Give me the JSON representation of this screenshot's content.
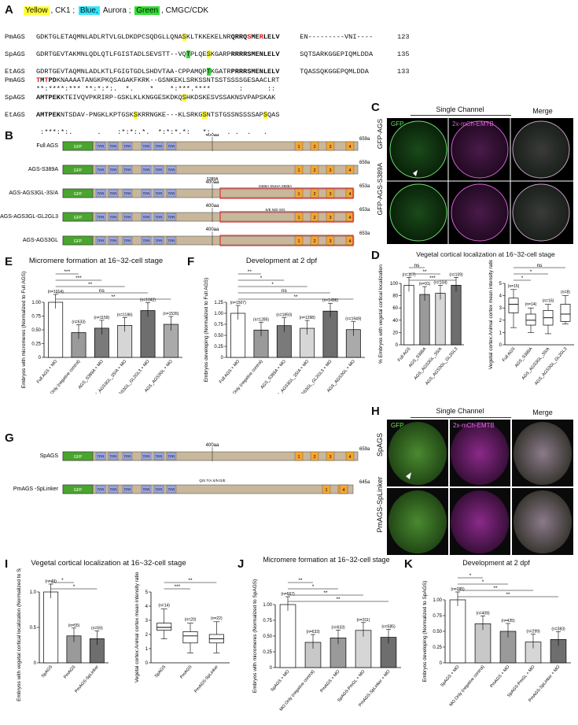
{
  "panels": {
    "A": "A",
    "B": "B",
    "C": "C",
    "D": "D",
    "E": "E",
    "F": "F",
    "G": "G",
    "H": "H",
    "I": "I",
    "J": "J",
    "K": "K"
  },
  "legendA": {
    "yellow": "Yellow",
    "ck1": ", CK1 ; ",
    "blue": "Blue,",
    "aurora": " Aurora ; ",
    "green": "Green",
    "cdk": ", CMGC/CDK"
  },
  "alignment": {
    "block1": [
      {
        "name": "PmAGS",
        "pre": "GDKTGLETAQMNLADLRTVLGLDKDPCSQDGLLQNA",
        "hlS": "S",
        "mid": "KLTKKEKELNR",
        "tail": "QRRQSMERLELV",
        "end": "     EN---------VNI----",
        "num": "123"
      },
      {
        "name": "SpAGS",
        "pre": "GDRTGEVTAKMNLQDLQTLFGISTADLSEVSTT--VQ",
        "hlT": "T",
        "m1": "PLQE",
        "hlS2": "S",
        "m2": "KGARP",
        "tail": "RRRRSMENLELV",
        "end": "     SQTSARKGGEPIQMLDDA",
        "num": "135"
      },
      {
        "name": "EtAGS",
        "pre": "GDRTGEVTAQMNLADLKTLFGIGTGDLSHDVTAA-CPPAMQP",
        "hlT": "T",
        "m2": "KGATR",
        "tail": "PRRRSMENLELV",
        "end": "     TQASSQKGGEPQMLDDA",
        "num": "133"
      },
      {
        "name": "cons",
        "text": "**:****:*** **:*:*:.  *.    *    *:***.****       :      ::"
      }
    ],
    "block2": [
      {
        "name": "PmAGS",
        "text": "TMTPDKNAAAATANGKPKQSAGAKFKRK--GSNKEKLSRKSSNTSSTSSSSGESAACLRT"
      },
      {
        "name": "SpAGS",
        "text": "AMTPEKKTEIVQVPKRIRP-GSKLKLKNGGESKDKQ",
        "hl": "S",
        "rest": "HKDSKESVSSAKNSVPAPSKAK"
      },
      {
        "name": "EtAGS",
        "text": "AMTPEKNTSDAV-PNGKLKPTGSK",
        "hl": "S",
        "rest": "KRRNGKE---KLSRKG",
        "hl2": "S",
        "rest2": "NTSTGSSNSSSSAP",
        "hl3": "S",
        "rest3": "QAS"
      },
      {
        "name": "cons",
        "text": " :***:*:.      .    :*:*:.*.  *:*:*.*:   *:.   . .  .   ."
      }
    ]
  },
  "panelB": {
    "constructs": [
      {
        "label": "Full AGS",
        "len": "659aa",
        "top400": "400aa"
      },
      {
        "label": "AGS-S389A",
        "len": "659aa",
        "mut": "S389A"
      },
      {
        "label": "AGS-AGS3GL-3S/A",
        "len": "653aa",
        "top400": "400aa",
        "muts": "S485A   S544A  S585A"
      },
      {
        "label": "AGS-AGS3GL-GL2GL3",
        "len": "653aa",
        "top400": "400aa",
        "muts": "S/E  N/D   S/G"
      },
      {
        "label": "AGS-AGS3GL",
        "len": "653aa",
        "top400": "400aa"
      }
    ],
    "gfp": "GFP",
    "tpr": "TPR",
    "gl": [
      "1",
      "2",
      "3",
      "4"
    ]
  },
  "panelC": {
    "header": "Single Channel",
    "merge": "Merge",
    "gfp": "GFP",
    "emtb": "2x-mCh-EMTB",
    "rows": [
      "GFP-AGS",
      "GFP-AGS-S389A"
    ]
  },
  "panelD": {
    "title": "Vegetal cortical localization at 16~32-cell stage",
    "left": {
      "ylabel": "% Embryos with vegetal cortical localization",
      "ylim": [
        0,
        100
      ],
      "ticks": [
        "0",
        "20",
        "40",
        "60",
        "80",
        "100"
      ],
      "categories": [
        "Full AGS",
        "AGS_S389A",
        "AGS_AGS3GL_3S/A",
        "AGS_AGS3GL_GL2GL3"
      ],
      "values": [
        97,
        82,
        84,
        97
      ],
      "n": [
        "(n=117)",
        "(n=91)",
        "(n=104)",
        "(n=109)"
      ],
      "sig": [
        "***",
        "**",
        "ns"
      ]
    },
    "right": {
      "ylabel": "Vegetal cortex:Animal cortex mean intensity ratio",
      "ylim": [
        0,
        5
      ],
      "ticks": [
        "0",
        "1",
        "2",
        "3",
        "4",
        "5"
      ],
      "categories": [
        "Full AGS",
        "AGS_S389A",
        "AGS_AGS3GL_3S/A",
        "AGS_AGS3GL_GL2GL3"
      ],
      "n": [
        "(n=15)",
        "(n=14)",
        "(n=16)",
        "(n=8)"
      ],
      "box": [
        {
          "min": 1.4,
          "q1": 2.6,
          "med": 3.3,
          "q3": 3.8,
          "max": 4.5
        },
        {
          "min": 1.0,
          "q1": 1.6,
          "med": 2.0,
          "q3": 2.5,
          "max": 3.0
        },
        {
          "min": 0.9,
          "q1": 1.6,
          "med": 2.2,
          "q3": 2.8,
          "max": 3.3
        },
        {
          "min": 1.7,
          "q1": 1.9,
          "med": 2.5,
          "q3": 3.3,
          "max": 4.0
        }
      ],
      "sig": [
        "*",
        "*",
        "ns"
      ]
    }
  },
  "panelE": {
    "title": "Micromere formation at 16~32-cell stage",
    "ylabel": "Embryos with micromeres (Normalized to Full AGS)",
    "ticks": [
      "0",
      "0.25",
      "0.50",
      "0.75",
      "1.00"
    ],
    "categories": [
      "Full AGS + MO",
      "MO Only (negative control)",
      "AGS_S389A + MO",
      "AGS_AGS3GL_3S/A + MO",
      "AGS_AGS3GL_GL2GL3 + MO",
      "AGS_AGS3GL + MO"
    ],
    "values": [
      1.0,
      0.45,
      0.53,
      0.58,
      0.85,
      0.6
    ],
    "n": [
      "(n=1014)",
      "(n=633)",
      "(n=1159)",
      "(n=1186)",
      "(n=1042)",
      "(n=1535)"
    ],
    "sig": [
      "**",
      "ns",
      "**",
      "***",
      "***"
    ]
  },
  "panelF": {
    "title": "Development at 2 dpf",
    "ylabel": "Embryos developing (Normalized to Full AGS)",
    "ticks": [
      "0",
      "0.25",
      "0.50",
      "0.75",
      "1.00",
      "1.25"
    ],
    "categories": [
      "Full AGS + MO",
      "MO Only (negative control)",
      "AGS_S389A + MO",
      "AGS_AGS3GL_3S/A + MO",
      "AGS_AGS3GL_GL2GL3 + MO",
      "AGS_AGS3GL + MO"
    ],
    "values": [
      1.0,
      0.62,
      0.72,
      0.66,
      1.05,
      0.63
    ],
    "n": [
      "(n=1507)",
      "(n=1285)",
      "(n=1893)",
      "(n=1298)",
      "(n=1496)",
      "(n=1949)"
    ],
    "sig": [
      "**",
      "ns",
      "*",
      "*",
      "**"
    ]
  },
  "panelG": {
    "constructs": [
      {
        "label": "SpAGS",
        "len": "659aa",
        "top400": "400aa"
      },
      {
        "label": "PmAGS -SpLinker",
        "len": "645aa"
      }
    ],
    "muts": "Q/S  T/A  S/N  D/E"
  },
  "panelH": {
    "header": "Single Channel",
    "merge": "Merge",
    "gfp": "GFP",
    "emtb": "2x-mCh-EMTB",
    "rows": [
      "SpAGS",
      "PmAGS-SpLinker"
    ]
  },
  "panelI": {
    "title": "Vegetal cortical localization at 16~32-cell stage",
    "left": {
      "ylabel": "Embryos with vegetal cortical localization (Normalized to SpAGS)",
      "ticks": [
        "0",
        "0.5",
        "1.0"
      ],
      "categories": [
        "SpAGS",
        "PmAGS",
        "PmAGS-SpLinker"
      ],
      "values": [
        1.0,
        0.38,
        0.34
      ],
      "n": [
        "(n=49)",
        "(n=55)",
        "(n=59)"
      ],
      "sig": [
        "*",
        "*"
      ]
    },
    "right": {
      "ylabel": "Vegetal cortex:Animal cortex mean intensity ratio",
      "ticks": [
        "0",
        "1",
        "2",
        "3",
        "4",
        "5"
      ],
      "categories": [
        "SpAGS",
        "PmAGS",
        "PmAGS-SpLinker"
      ],
      "n": [
        "(n=14)",
        "(n=20)",
        "(n=22)"
      ],
      "box": [
        {
          "min": 1.7,
          "q1": 2.3,
          "med": 2.5,
          "q3": 2.8,
          "max": 3.8
        },
        {
          "min": 0.7,
          "q1": 1.4,
          "med": 1.9,
          "q3": 2.2,
          "max": 2.8
        },
        {
          "min": 0.7,
          "q1": 1.4,
          "med": 1.7,
          "q3": 2.0,
          "max": 2.9
        }
      ],
      "sig": [
        "***",
        "**"
      ]
    }
  },
  "panelJ": {
    "title": "Micromere formation at 16~32-cell stage",
    "ylabel": "Embryos with micromeres (Normalized to SpAGS)",
    "ticks": [
      "0",
      "0.25",
      "0.50",
      "0.75",
      "1.00"
    ],
    "categories": [
      "SpAGS + MO",
      "MO Only (negative control)",
      "PmAGS + MO",
      "SpAGS-PmGL + MO",
      "PmAGS-SpLinker + MO"
    ],
    "values": [
      1.0,
      0.4,
      0.47,
      0.59,
      0.48
    ],
    "n": [
      "(n=667)",
      "(n=633)",
      "(n=633)",
      "(n=311)",
      "(n=585)"
    ],
    "sig": [
      "**",
      "**",
      "*",
      "**"
    ]
  },
  "panelK": {
    "title": "Development at 2 dpf",
    "ylabel": "Embryos developing (Normalized to SpAGS)",
    "ticks": [
      "0",
      "0.25",
      "0.50",
      "0.75",
      "1.00"
    ],
    "categories": [
      "SpAGS + MO",
      "MO Only (negative control)",
      "PmAGS + MO",
      "SpAGS-PmGL + MO",
      "PmAGS-SpLinker + MO"
    ],
    "values": [
      1.0,
      0.62,
      0.5,
      0.33,
      0.37
    ],
    "n": [
      "(n=285)",
      "(n=409)",
      "(n=435)",
      "(n=299)",
      "(n=383)"
    ],
    "sig": [
      "**",
      "**",
      "*",
      "*"
    ]
  }
}
